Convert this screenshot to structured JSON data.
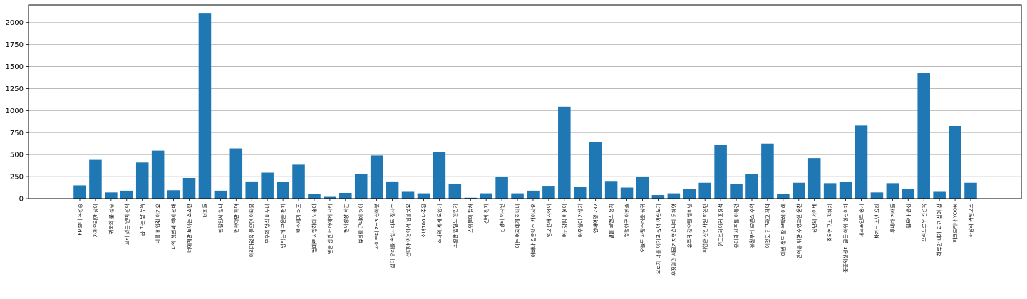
{
  "chart_data": {
    "type": "bar",
    "title": "",
    "xlabel": "",
    "ylabel": "",
    "ylim": [
      0,
      2200
    ],
    "yticks": [
      0,
      250,
      500,
      750,
      1000,
      1250,
      1500,
      1750,
      2000
    ],
    "grid": "y",
    "bar_color": "#1f77b4",
    "categories": [
      "FM보이 육성중",
      "가까우리만 상이",
      "귀국의 룸 상승",
      "꼬리 잇는 연예 전략",
      "꿈 파는 날 무뚝",
      "나를 비워줘 이거요",
      "나의 첫번째 색에 선배",
      "너에게만 보이는 소소한",
      "너희들",
      "만필인서 일나",
      "멈써야만 하며",
      "미리가없음 물오면 이타봉",
      "무우의 명식 바누비",
      "밥먹는데 구울을 편지",
      "백수세기 처조",
      "범태로 사망하다 노숭아",
      "별을 삼킨 너머에게 사리",
      "별이상상 하는",
      "뷰티를 군내에 청이",
      "사이드디 2~3 신아봉",
      "삶이 우리를 속일지라도 집자수",
      "선녀야 아용에서 템플렛요",
      "소녀100 나주된",
      "소녀의 세계 모양기",
      "소설한 맙빌도 원인기",
      "스위블이 탑쳐",
      "신비 정지",
      "신경비 이사된",
      "아는 여자에게 하나비",
      "아빠나 컴플렉스 캐이사요",
      "엄포천재 지에이",
      "여신강림 아울이",
      "여주설이 가생기",
      "연애혁명 232",
      "열불 로맨스 용치",
      "열렬한구 이한솔",
      "오늘도 사랑스러운 찾귀",
      "오로지 너를 이기고 싶어 어린도기",
      "우정일의 세르가지였습니다 문혜영",
      "유주의 강으렌 엘비닝",
      "위험한 신입사원 박은빈",
      "윈드브레이커 조용석",
      "유미의 세포들 이동건",
      "유월부터 로맨스 주혁",
      "이것도 친구라고 제약",
      "이번 생도 잘 부탁해 이혜",
      "인어를 위한 수영교실 울찬",
      "장난의 서이베",
      "중독연구소 김혜기",
      "중증외상센터 골든 아워 한산이가",
      "체크포인트 송기",
      "참가는 소년 요리",
      "투베라 거래들",
      "팝모나 윤성",
      "프리드로우 전선욱",
      "하루만 네가 되고 싶어 삼",
      "하코드리나 YOON",
      "하삼라 카밀포스"
    ],
    "values": [
      150,
      440,
      70,
      90,
      410,
      545,
      95,
      235,
      2110,
      90,
      570,
      195,
      295,
      190,
      385,
      50,
      20,
      65,
      280,
      490,
      195,
      85,
      60,
      530,
      170,
      10,
      60,
      245,
      60,
      90,
      145,
      1045,
      130,
      645,
      200,
      125,
      250,
      40,
      60,
      110,
      180,
      610,
      165,
      280,
      625,
      50,
      180,
      460,
      175,
      190,
      830,
      70,
      175,
      105,
      1425,
      85,
      825,
      180
    ]
  }
}
